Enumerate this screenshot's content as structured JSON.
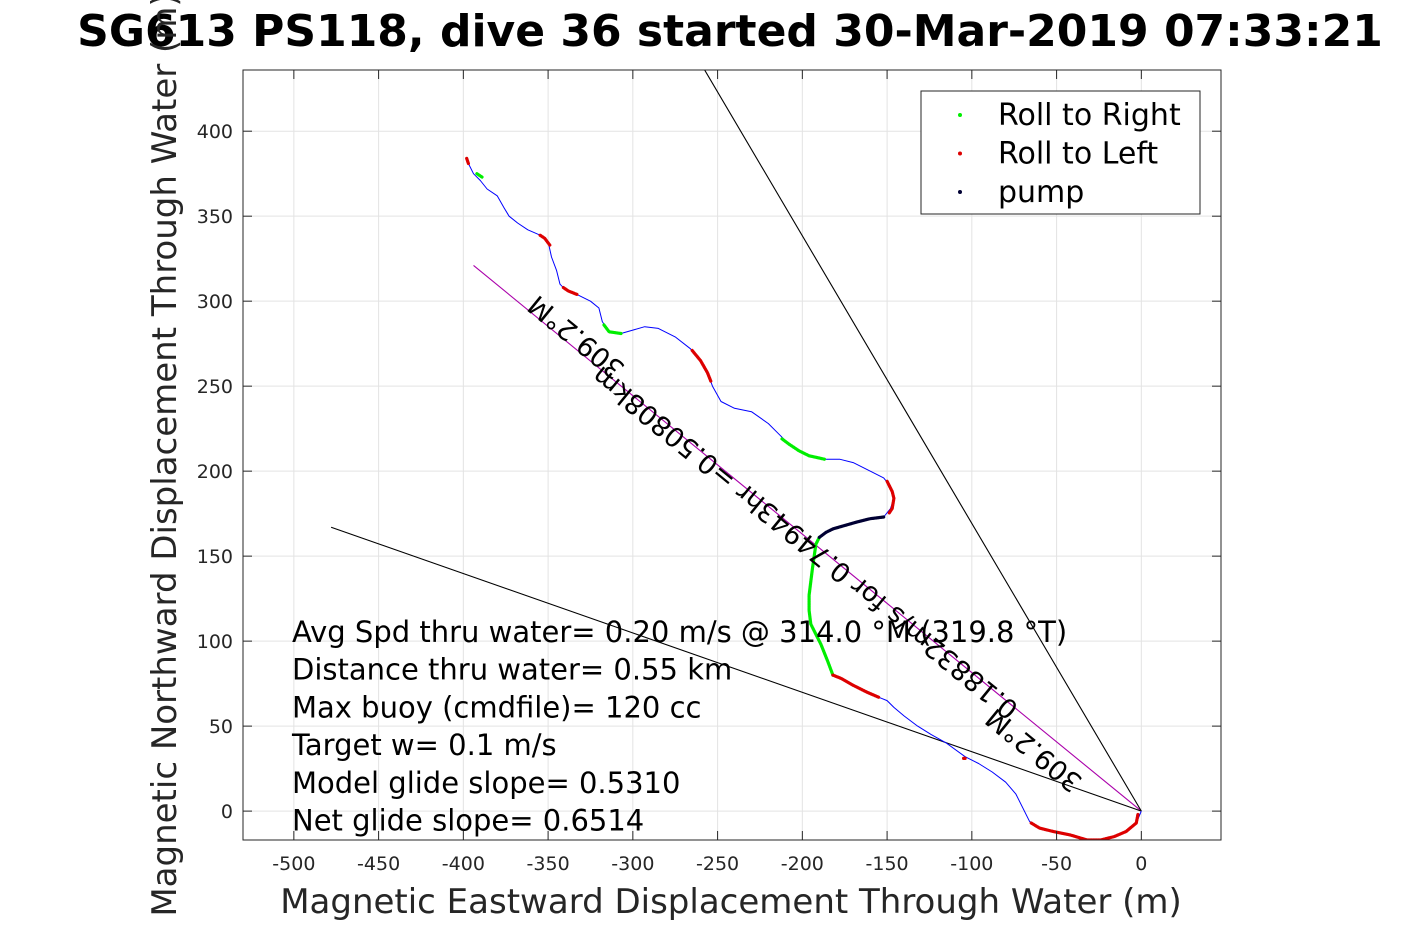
{
  "chart_data": {
    "type": "scatter",
    "title": "SG613 PS118, dive 36 started 30-Mar-2019 07:33:21",
    "xlabel": "Magnetic Eastward Displacement Through Water (m)",
    "ylabel": "Magnetic Northward Displacement Through Water (m)",
    "xlim": [
      -530,
      47
    ],
    "ylim": [
      -17,
      436
    ],
    "xticks": [
      -500,
      -450,
      -400,
      -350,
      -300,
      -250,
      -200,
      -150,
      -100,
      -50,
      0
    ],
    "yticks": [
      0,
      50,
      100,
      150,
      200,
      250,
      300,
      350,
      400
    ],
    "grid": true,
    "legend_position": "top-right",
    "legend": [
      {
        "label": "Roll to Right",
        "color": "#00ee00"
      },
      {
        "label": "Roll to Left",
        "color": "#dd0000"
      },
      {
        "label": "pump",
        "color": "#000033"
      }
    ],
    "track": {
      "color": "#0000ff",
      "points": [
        [
          0,
          0
        ],
        [
          -3,
          -7
        ],
        [
          -9,
          -12
        ],
        [
          -16,
          -15
        ],
        [
          -24,
          -17
        ],
        [
          -32,
          -17
        ],
        [
          -42,
          -14
        ],
        [
          -52,
          -12
        ],
        [
          -60,
          -10
        ],
        [
          -66,
          -6
        ],
        [
          -70,
          2
        ],
        [
          -74,
          10
        ],
        [
          -80,
          17
        ],
        [
          -88,
          23
        ],
        [
          -96,
          28
        ],
        [
          -104,
          32
        ],
        [
          -115,
          40
        ],
        [
          -124,
          45
        ],
        [
          -132,
          50
        ],
        [
          -140,
          56
        ],
        [
          -146,
          61
        ],
        [
          -150,
          65
        ],
        [
          -155,
          67
        ],
        [
          -162,
          70
        ],
        [
          -170,
          74
        ],
        [
          -177,
          78
        ],
        [
          -182,
          80
        ],
        [
          -185,
          88
        ],
        [
          -189,
          98
        ],
        [
          -192,
          104
        ],
        [
          -195,
          110
        ],
        [
          -196,
          118
        ],
        [
          -196,
          127
        ],
        [
          -195,
          135
        ],
        [
          -194,
          143
        ],
        [
          -193,
          150
        ],
        [
          -192,
          157
        ],
        [
          -189,
          162
        ],
        [
          -182,
          166
        ],
        [
          -175,
          168
        ],
        [
          -168,
          170
        ],
        [
          -160,
          172
        ],
        [
          -152,
          173
        ],
        [
          -148,
          178
        ],
        [
          -146,
          184
        ],
        [
          -148,
          191
        ],
        [
          -152,
          196
        ],
        [
          -160,
          200
        ],
        [
          -170,
          205
        ],
        [
          -178,
          207
        ],
        [
          -188,
          207
        ],
        [
          -196,
          209
        ],
        [
          -202,
          212
        ],
        [
          -208,
          216
        ],
        [
          -214,
          222
        ],
        [
          -220,
          228
        ],
        [
          -230,
          235
        ],
        [
          -240,
          237
        ],
        [
          -248,
          241
        ],
        [
          -253,
          250
        ],
        [
          -256,
          258
        ],
        [
          -260,
          265
        ],
        [
          -266,
          272
        ],
        [
          -275,
          279
        ],
        [
          -285,
          284
        ],
        [
          -293,
          285
        ],
        [
          -300,
          283
        ],
        [
          -307,
          281
        ],
        [
          -314,
          282
        ],
        [
          -318,
          288
        ],
        [
          -320,
          296
        ],
        [
          -325,
          300
        ],
        [
          -333,
          304
        ],
        [
          -340,
          307
        ],
        [
          -343,
          310
        ],
        [
          -345,
          318
        ],
        [
          -348,
          326
        ],
        [
          -350,
          335
        ],
        [
          -355,
          339
        ],
        [
          -362,
          342
        ],
        [
          -368,
          346
        ],
        [
          -373,
          350
        ],
        [
          -376,
          355
        ],
        [
          -380,
          362
        ],
        [
          -386,
          366
        ],
        [
          -390,
          371
        ],
        [
          -394,
          375
        ],
        [
          -397,
          381
        ],
        [
          -398,
          384
        ]
      ]
    },
    "roll_right": [
      [
        [
          -182,
          80
        ],
        [
          -185,
          88
        ],
        [
          -189,
          98
        ],
        [
          -192,
          104
        ],
        [
          -195,
          110
        ],
        [
          -196,
          118
        ],
        [
          -196,
          127
        ],
        [
          -195,
          135
        ],
        [
          -194,
          143
        ],
        [
          -193,
          150
        ],
        [
          -192,
          157
        ],
        [
          -190,
          161
        ]
      ],
      [
        [
          -187,
          207
        ],
        [
          -196,
          209
        ],
        [
          -202,
          212
        ],
        [
          -208,
          216
        ],
        [
          -212,
          219
        ]
      ],
      [
        [
          -307,
          281
        ],
        [
          -314,
          282
        ],
        [
          -317,
          286
        ]
      ],
      [
        [
          -389,
          373
        ],
        [
          -392,
          375
        ]
      ]
    ],
    "roll_left": [
      [
        [
          -2,
          -2
        ],
        [
          -3,
          -7
        ],
        [
          -9,
          -12
        ],
        [
          -16,
          -15
        ],
        [
          -24,
          -17
        ],
        [
          -32,
          -17
        ],
        [
          -42,
          -14
        ],
        [
          -52,
          -12
        ],
        [
          -60,
          -10
        ],
        [
          -65,
          -7
        ]
      ],
      [
        [
          -155,
          67
        ],
        [
          -162,
          70
        ],
        [
          -170,
          74
        ],
        [
          -177,
          78
        ],
        [
          -182,
          80
        ]
      ],
      [
        [
          -150,
          194
        ],
        [
          -147,
          188
        ],
        [
          -146,
          184
        ],
        [
          -147,
          178
        ],
        [
          -149,
          175
        ]
      ],
      [
        [
          -265,
          271
        ],
        [
          -260,
          265
        ],
        [
          -256,
          258
        ],
        [
          -254,
          253
        ]
      ],
      [
        [
          -333,
          304
        ],
        [
          -338,
          306
        ],
        [
          -341,
          308
        ]
      ],
      [
        [
          -349,
          333
        ],
        [
          -352,
          337
        ],
        [
          -355,
          339
        ]
      ],
      [
        [
          -104,
          31
        ],
        [
          -105,
          31
        ]
      ],
      [
        [
          -398,
          384
        ],
        [
          -397,
          381
        ]
      ]
    ],
    "pump": [
      [
        [
          -190,
          161
        ],
        [
          -186,
          164
        ],
        [
          -182,
          166
        ],
        [
          -175,
          168
        ],
        [
          -168,
          170
        ],
        [
          -160,
          172
        ],
        [
          -152,
          173
        ]
      ]
    ],
    "lines": [
      {
        "label": "309.2°M",
        "from": [
          0,
          0
        ],
        "to": [
          -394,
          321
        ],
        "color": "#aa00aa"
      },
      {
        "label": "",
        "from": [
          0,
          0
        ],
        "to": [
          -260,
          440
        ],
        "color": "#000000"
      },
      {
        "label": "",
        "from": [
          0,
          0
        ],
        "to": [
          -478,
          167
        ],
        "color": "#000000"
      }
    ],
    "rotated_labels": [
      {
        "text": "309.2°M",
        "at": [
          -330,
          283
        ],
        "angle": 219.2
      },
      {
        "text": "0.18832m/s for 0.74943hr =0.50808km",
        "at": [
          -195,
          162
        ],
        "angle": 219.2
      },
      {
        "text": "309.2°M",
        "at": [
          -60,
          40
        ],
        "angle": 219.2
      }
    ],
    "annotations": [
      "Avg Spd thru water=  0.20 m/s @ 314.0 °M (319.8 °T)",
      "Distance thru water=  0.55 km",
      "Max buoy (cmdfile)= 120 cc",
      "Target w= 0.1 m/s",
      "Model glide slope= 0.5310",
      "Net glide slope= 0.6514"
    ]
  }
}
